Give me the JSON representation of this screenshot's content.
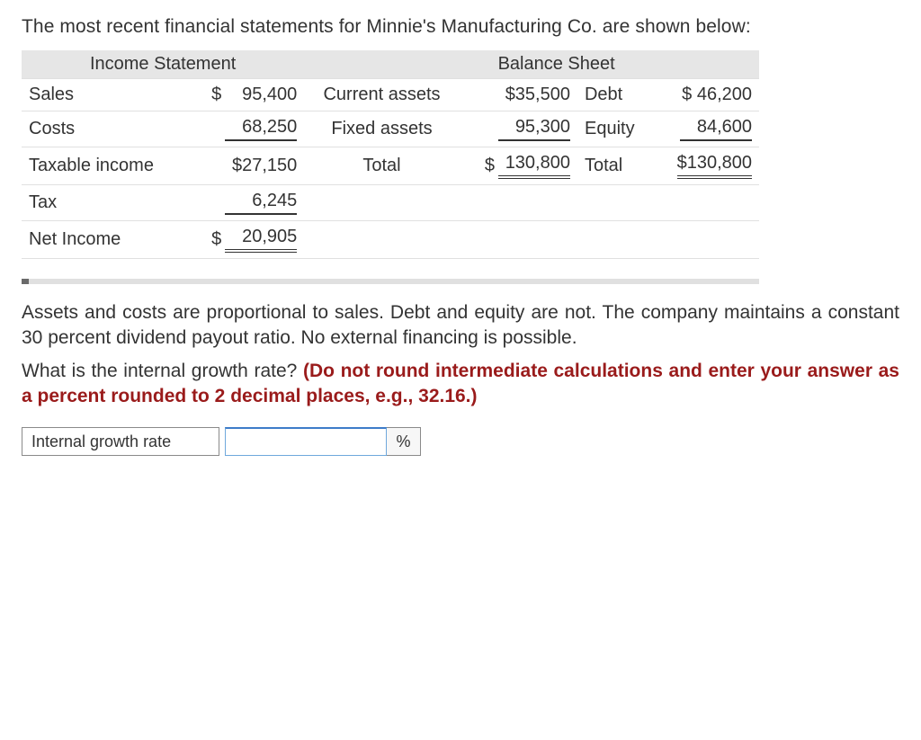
{
  "intro_text": "The most recent financial statements for Minnie's Manufacturing Co. are shown below:",
  "headers": {
    "income_statement": "Income Statement",
    "balance_sheet": "Balance Sheet"
  },
  "income_statement": {
    "sales_label": "Sales",
    "sales_value": "95,400",
    "costs_label": "Costs",
    "costs_value": "68,250",
    "taxable_income_label": "Taxable income",
    "taxable_income_value": "$27,150",
    "tax_label": "Tax",
    "tax_value": "6,245",
    "net_income_label": "Net Income",
    "net_income_value": "20,905"
  },
  "balance_sheet": {
    "current_assets_label": "Current assets",
    "current_assets_value": "$35,500",
    "debt_label": "Debt",
    "debt_value": "$ 46,200",
    "fixed_assets_label": "Fixed assets",
    "fixed_assets_value": "95,300",
    "equity_label": "Equity",
    "equity_value": "84,600",
    "total_assets_label": "Total",
    "total_assets_value": "130,800",
    "total_le_label": "Total",
    "total_le_value": "$130,800"
  },
  "paragraph1": "Assets and costs are proportional to sales. Debt and equity are not. The company maintains a constant 30 percent dividend payout ratio. No external financing is possible.",
  "question_prefix": "What is the internal growth rate? ",
  "question_red": "(Do not round intermediate calculations and enter your answer as a percent rounded to 2 decimal places, e.g., 32.16.)",
  "answer": {
    "label": "Internal growth rate",
    "unit": "%",
    "value": ""
  },
  "colors": {
    "text": "#333333",
    "header_bg": "#e6e6e6",
    "row_border": "#e0e0e0",
    "red": "#9a1b1b",
    "input_border": "#6fa8dc",
    "input_top": "#3d7cc9"
  }
}
